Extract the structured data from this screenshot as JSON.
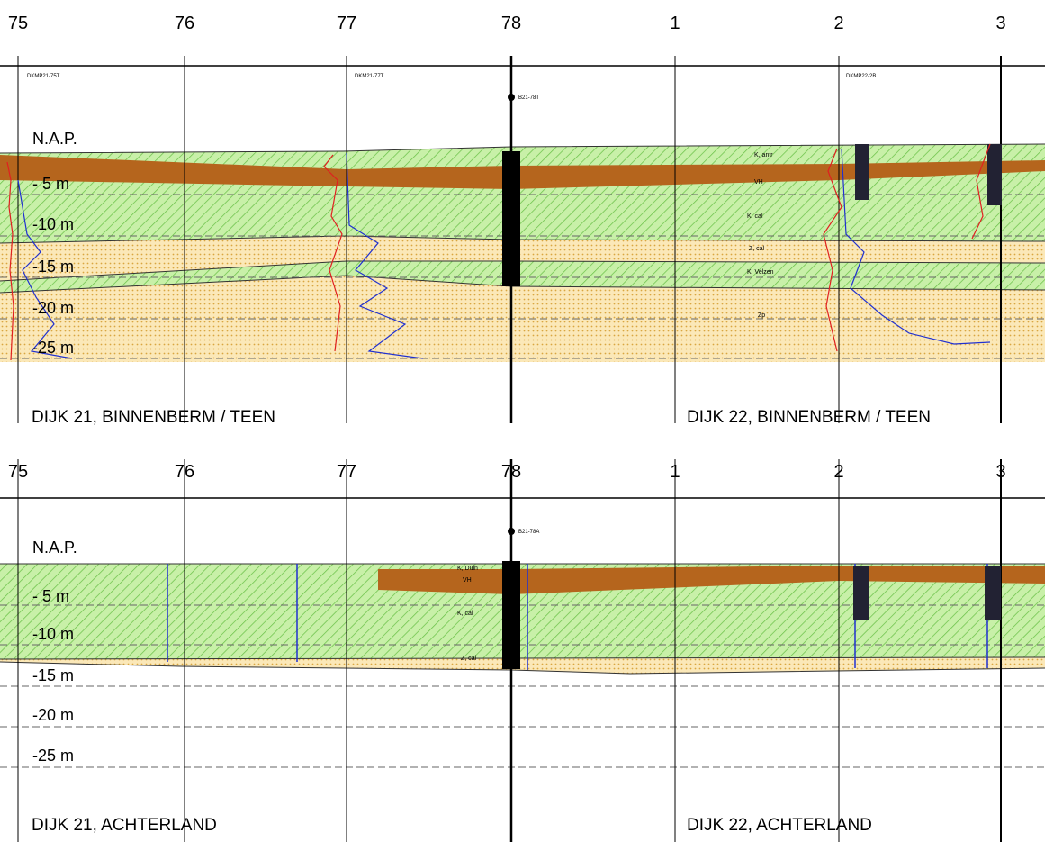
{
  "panels": [
    {
      "stations": [
        "75",
        "76",
        "77",
        "78",
        "1",
        "2",
        "3"
      ],
      "depth_labels": [
        "N.A.P.",
        "- 5 m",
        "-10 m",
        "-15 m",
        "-20 m",
        "-25 m"
      ],
      "boreholes": [
        "DKMP21-75T",
        "DKM21-77T",
        "B21-78T",
        "DKMP22-2B"
      ],
      "layer_labels": [
        "K, antr",
        "VH",
        "K, cal",
        "Z, cal",
        "K, Velzen",
        "Zp"
      ],
      "title_left": "DIJK 21, BINNENBERM / TEEN",
      "title_right": "DIJK 22, BINNENBERM / TEEN"
    },
    {
      "stations": [
        "75",
        "76",
        "77",
        "78",
        "1",
        "2",
        "3"
      ],
      "depth_labels": [
        "N.A.P.",
        "- 5 m",
        "-10 m",
        "-15 m",
        "-20 m",
        "-25 m"
      ],
      "boreholes": [
        "B21-78A"
      ],
      "layer_labels": [
        "K, Duin",
        "VH",
        "K, cal",
        "Z, cal"
      ],
      "title_left": "DIJK 21, ACHTERLAND",
      "title_right": "DIJK 22, ACHTERLAND"
    }
  ]
}
